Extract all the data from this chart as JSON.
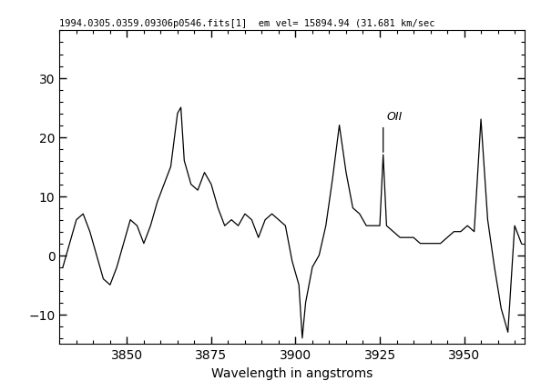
{
  "title": "1994.0305.0359.09306p0546.fits[1]  em vel= 15894.94 (31.681 km/sec",
  "xlabel": "Wavelength in angstroms",
  "xlim": [
    3830,
    3968
  ],
  "ylim": [
    -15,
    38
  ],
  "xticks": [
    3850,
    3875,
    3900,
    3925,
    3950
  ],
  "yticks": [
    -10,
    0,
    10,
    20,
    30
  ],
  "oii_label": "OII",
  "oii_x": 3926,
  "oii_y_base": 17,
  "oii_line_top": 22,
  "background": "#ffffff",
  "line_color": "#000000",
  "x_pts": [
    3831,
    3833,
    3835,
    3837,
    3839,
    3841,
    3843,
    3845,
    3847,
    3849,
    3851,
    3853,
    3855,
    3857,
    3859,
    3861,
    3863,
    3865,
    3866,
    3867,
    3869,
    3871,
    3873,
    3875,
    3877,
    3879,
    3881,
    3883,
    3885,
    3887,
    3889,
    3891,
    3893,
    3895,
    3897,
    3899,
    3901,
    3902,
    3903,
    3905,
    3907,
    3909,
    3911,
    3913,
    3915,
    3917,
    3919,
    3921,
    3923,
    3925,
    3926,
    3927,
    3929,
    3931,
    3933,
    3935,
    3937,
    3939,
    3941,
    3943,
    3945,
    3947,
    3949,
    3951,
    3953,
    3955,
    3957,
    3959,
    3961,
    3963,
    3965,
    3967
  ],
  "y_pts": [
    -2,
    2,
    6,
    7,
    4,
    0,
    -4,
    -5,
    -2,
    2,
    6,
    5,
    2,
    5,
    9,
    12,
    15,
    24,
    25,
    16,
    12,
    11,
    14,
    12,
    8,
    5,
    6,
    5,
    7,
    6,
    3,
    6,
    7,
    6,
    5,
    -1,
    -5,
    -14,
    -8,
    -2,
    0,
    5,
    13,
    22,
    14,
    8,
    7,
    5,
    5,
    5,
    17,
    5,
    4,
    3,
    3,
    3,
    2,
    2,
    2,
    2,
    3,
    4,
    4,
    5,
    4,
    23,
    6,
    -2,
    -9,
    -13,
    5,
    2
  ]
}
